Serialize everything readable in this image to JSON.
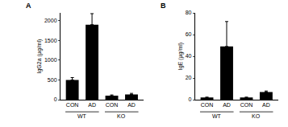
{
  "chart_data": [
    {
      "type": "bar",
      "label": "A",
      "y_label": "IgG2a (μg/ml)",
      "categories": [
        "CON",
        "AD",
        "CON",
        "AD"
      ],
      "groups": [
        "WT",
        "WT",
        "KO",
        "KO"
      ],
      "values": [
        500,
        1900,
        100,
        130
      ],
      "errors": [
        60,
        280,
        20,
        30
      ],
      "color": "#000000",
      "ylim": [
        0,
        2200
      ],
      "yticks": [
        0,
        500,
        1000,
        1500,
        2000
      ],
      "grid": false
    },
    {
      "type": "bar",
      "label": "B",
      "y_label": "IgE (μg/ml)",
      "categories": [
        "CON",
        "AD",
        "CON",
        "AD"
      ],
      "groups": [
        "WT",
        "WT",
        "KO",
        "KO"
      ],
      "values": [
        2,
        49,
        2,
        7
      ],
      "errors": [
        0.3,
        23,
        0.3,
        1
      ],
      "color": "#000000",
      "ylim": [
        0,
        80
      ],
      "yticks": [
        0,
        20,
        40,
        60,
        80
      ],
      "grid": false
    }
  ]
}
